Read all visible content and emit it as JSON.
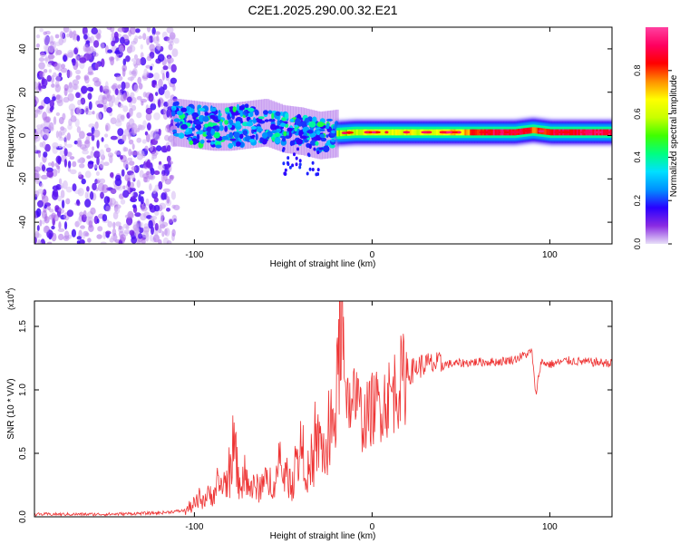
{
  "chart_data": [
    {
      "type": "heatmap",
      "title": "C2E1.2025.290.00.32.E21",
      "xlabel": "Height of straight line (km)",
      "ylabel": "Frequency (Hz)",
      "xlim": [
        -190,
        135
      ],
      "ylim": [
        -50,
        50
      ],
      "xticks": [
        -100,
        0,
        100
      ],
      "xtick_labels": [
        "-100",
        "0",
        "100"
      ],
      "yticks": [
        -40,
        -20,
        0,
        20,
        40
      ],
      "ytick_labels": [
        "-40",
        "-20",
        "0",
        "20",
        "40"
      ],
      "colorbar": {
        "label": "Normalized spectral amplitude",
        "range": [
          0,
          1
        ],
        "ticks": [
          0.0,
          0.2,
          0.4,
          0.6,
          0.8
        ],
        "tick_labels": [
          "0.0",
          "0.2",
          "0.4",
          "0.6",
          "0.8"
        ],
        "colormap": [
          "#e8e0f8",
          "#8a2be2",
          "#2a00ff",
          "#0090ff",
          "#00e0ff",
          "#00ff80",
          "#40ff00",
          "#c8ff00",
          "#ffff00",
          "#ff9000",
          "#ff0000",
          "#ff0060",
          "#ff40a0"
        ]
      },
      "regions": [
        {
          "name": "noise",
          "x_range": [
            -190,
            -110
          ],
          "f_range": [
            -50,
            50
          ],
          "amplitude": 0.08
        },
        {
          "name": "transition",
          "x_range": [
            -110,
            -20
          ],
          "f_range": [
            -18,
            20
          ],
          "amplitude": 0.3
        },
        {
          "name": "signal-band",
          "x_range": [
            -20,
            135
          ],
          "center_hz": 1.5,
          "amplitude": 0.85
        }
      ],
      "signal_band": {
        "x": [
          -110,
          -100,
          -90,
          -80,
          -70,
          -60,
          -50,
          -40,
          -30,
          -20,
          -10,
          0,
          10,
          20,
          30,
          40,
          50,
          60,
          70,
          80,
          90,
          100,
          110,
          120,
          135
        ],
        "center_hz": [
          6,
          5,
          4,
          4,
          5,
          6,
          3,
          2,
          0,
          1,
          1.5,
          1.5,
          1.5,
          1.5,
          1.5,
          1.5,
          1.5,
          1.5,
          1.5,
          1.5,
          2.5,
          1.5,
          1.5,
          1.5,
          1.5
        ],
        "amplitude": [
          0.3,
          0.3,
          0.32,
          0.3,
          0.35,
          0.35,
          0.32,
          0.3,
          0.32,
          0.55,
          0.6,
          0.65,
          0.62,
          0.65,
          0.6,
          0.65,
          0.7,
          0.85,
          0.9,
          0.88,
          0.8,
          0.86,
          0.88,
          0.9,
          0.9
        ]
      }
    },
    {
      "type": "line",
      "xlabel": "Height of straight line (km)",
      "ylabel": "SNR (10 * V/V)",
      "y_scale_label": "(x10",
      "y_scale_exp": "4",
      "y_scale_close": ")",
      "xlim": [
        -190,
        135
      ],
      "ylim": [
        0,
        1.7
      ],
      "xticks": [
        -100,
        0,
        100
      ],
      "xtick_labels": [
        "-100",
        "0",
        "100"
      ],
      "yticks": [
        0.0,
        0.5,
        1.0,
        1.5
      ],
      "ytick_labels": [
        "0.0",
        "0.5",
        "1.0",
        "1.5"
      ],
      "series": [
        {
          "name": "SNR",
          "color": "#ee3333",
          "x": [
            -190,
            -150,
            -120,
            -105,
            -100,
            -95,
            -90,
            -85,
            -80,
            -78,
            -75,
            -70,
            -65,
            -60,
            -55,
            -50,
            -45,
            -40,
            -35,
            -30,
            -25,
            -20,
            -17,
            -15,
            -12,
            -10,
            -5,
            0,
            5,
            10,
            15,
            20,
            25,
            30,
            40,
            50,
            60,
            70,
            80,
            85,
            90,
            92,
            95,
            100,
            110,
            120,
            135
          ],
          "y": [
            0.02,
            0.02,
            0.03,
            0.05,
            0.1,
            0.14,
            0.18,
            0.25,
            0.3,
            0.6,
            0.28,
            0.24,
            0.22,
            0.26,
            0.3,
            0.35,
            0.25,
            0.55,
            0.3,
            0.6,
            0.45,
            0.9,
            1.68,
            0.8,
            0.9,
            0.95,
            0.75,
            0.85,
            0.9,
            0.95,
            1.05,
            1.12,
            1.18,
            1.2,
            1.2,
            1.21,
            1.22,
            1.22,
            1.24,
            1.27,
            1.3,
            0.95,
            1.22,
            1.2,
            1.23,
            1.22,
            1.21
          ]
        }
      ]
    }
  ]
}
